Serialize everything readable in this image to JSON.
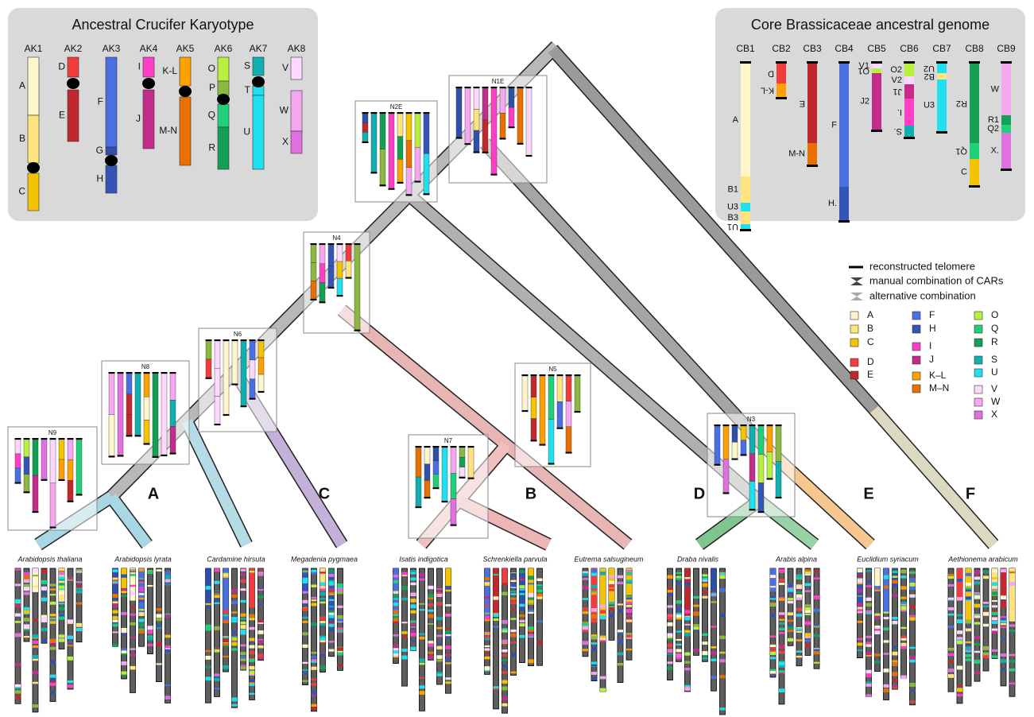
{
  "ack": {
    "title": "Ancestral Crucifer Karyotype",
    "chromosomes": [
      {
        "name": "AK1",
        "blocks": [
          "A",
          "B",
          "C"
        ]
      },
      {
        "name": "AK2",
        "blocks": [
          "D",
          "E"
        ]
      },
      {
        "name": "AK3",
        "blocks": [
          "F",
          "G",
          "H"
        ]
      },
      {
        "name": "AK4",
        "blocks": [
          "I",
          "J"
        ]
      },
      {
        "name": "AK5",
        "blocks": [
          "K-L",
          "M-N"
        ]
      },
      {
        "name": "AK6",
        "blocks": [
          "O",
          "P",
          "Q",
          "R"
        ]
      },
      {
        "name": "AK7",
        "blocks": [
          "S",
          "T",
          "U"
        ]
      },
      {
        "name": "AK8",
        "blocks": [
          "V",
          "W",
          "X"
        ]
      }
    ]
  },
  "cbag": {
    "title": "Core Brassicaceae ancestral genome",
    "chromosomes": [
      {
        "name": "CB1",
        "blocks": [
          "A",
          "B1",
          "U3",
          "B3",
          "U1"
        ]
      },
      {
        "name": "CB2",
        "blocks": [
          "D",
          "K-L"
        ]
      },
      {
        "name": "CB3",
        "blocks": [
          "E",
          "M-N"
        ]
      },
      {
        "name": "CB4",
        "blocks": [
          "F",
          "H."
        ]
      },
      {
        "name": "CB5",
        "blocks": [
          "V1",
          "O1",
          "J2"
        ]
      },
      {
        "name": "CB6",
        "blocks": [
          "O2",
          "V2",
          "J1",
          "I.",
          "S."
        ]
      },
      {
        "name": "CB7",
        "blocks": [
          "U2",
          "B2",
          "U3"
        ]
      },
      {
        "name": "CB8",
        "blocks": [
          "R2",
          "Q1",
          "C"
        ]
      },
      {
        "name": "CB9",
        "blocks": [
          "W",
          "R1",
          "Q2",
          "X."
        ]
      }
    ]
  },
  "nodes": [
    "N2E",
    "N1E",
    "N4",
    "N6",
    "N8",
    "N9",
    "N7",
    "N5",
    "N3"
  ],
  "clades": [
    "A",
    "B",
    "C",
    "D",
    "E",
    "F"
  ],
  "species": [
    "Arabidopsis thaliana",
    "Arabidopsis lyrata",
    "Cardamine hirsuta",
    "Megadenia pygmaea",
    "Isatis indigotica",
    "Schrenkiella parvula",
    "Eutrema salsugineum",
    "Draba nivalis",
    "Arabis alpina",
    "Euclidium syriacum",
    "Aethionema arabicum"
  ],
  "legend": {
    "telomere": "reconstructed telomere",
    "manual": "manual combination of CARs",
    "alternative": "alternative combination",
    "blocks": [
      "A",
      "B",
      "C",
      "D",
      "E",
      "F",
      "H",
      "I",
      "J",
      "K–L",
      "M–N",
      "O",
      "Q",
      "R",
      "S",
      "U",
      "V",
      "W",
      "X"
    ]
  }
}
